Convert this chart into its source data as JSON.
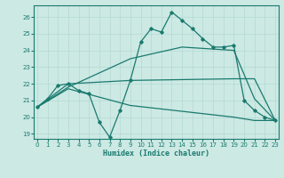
{
  "xlabel": "Humidex (Indice chaleur)",
  "xlim": [
    -0.3,
    23.3
  ],
  "ylim": [
    18.7,
    26.7
  ],
  "yticks": [
    19,
    20,
    21,
    22,
    23,
    24,
    25,
    26
  ],
  "xticks": [
    0,
    1,
    2,
    3,
    4,
    5,
    6,
    7,
    8,
    9,
    10,
    11,
    12,
    13,
    14,
    15,
    16,
    17,
    18,
    19,
    20,
    21,
    22,
    23
  ],
  "bg_color": "#cce9e4",
  "line_color": "#1a7a6e",
  "grid_color": "#b5d8d3",
  "line1_x": [
    0,
    1,
    2,
    3,
    4,
    5,
    6,
    7,
    8,
    9,
    10,
    11,
    12,
    13,
    14,
    15,
    16,
    17,
    18,
    19,
    20,
    21,
    22,
    23
  ],
  "line1_y": [
    20.6,
    21.1,
    21.9,
    22.0,
    21.6,
    21.4,
    19.7,
    18.8,
    20.4,
    22.2,
    24.5,
    25.3,
    25.1,
    26.3,
    25.8,
    25.3,
    24.7,
    24.2,
    24.2,
    24.3,
    21.0,
    20.4,
    20.0,
    19.8
  ],
  "line2_x": [
    0,
    3,
    9,
    19,
    21,
    23
  ],
  "line2_y": [
    20.6,
    22.0,
    22.2,
    22.3,
    22.3,
    19.8
  ],
  "line3_x": [
    0,
    3,
    9,
    14,
    19,
    21,
    23
  ],
  "line3_y": [
    20.6,
    21.8,
    23.5,
    24.2,
    24.0,
    21.1,
    19.8
  ],
  "line4_x": [
    0,
    3,
    9,
    19,
    21,
    23
  ],
  "line4_y": [
    20.6,
    21.7,
    20.7,
    20.0,
    19.8,
    19.8
  ]
}
